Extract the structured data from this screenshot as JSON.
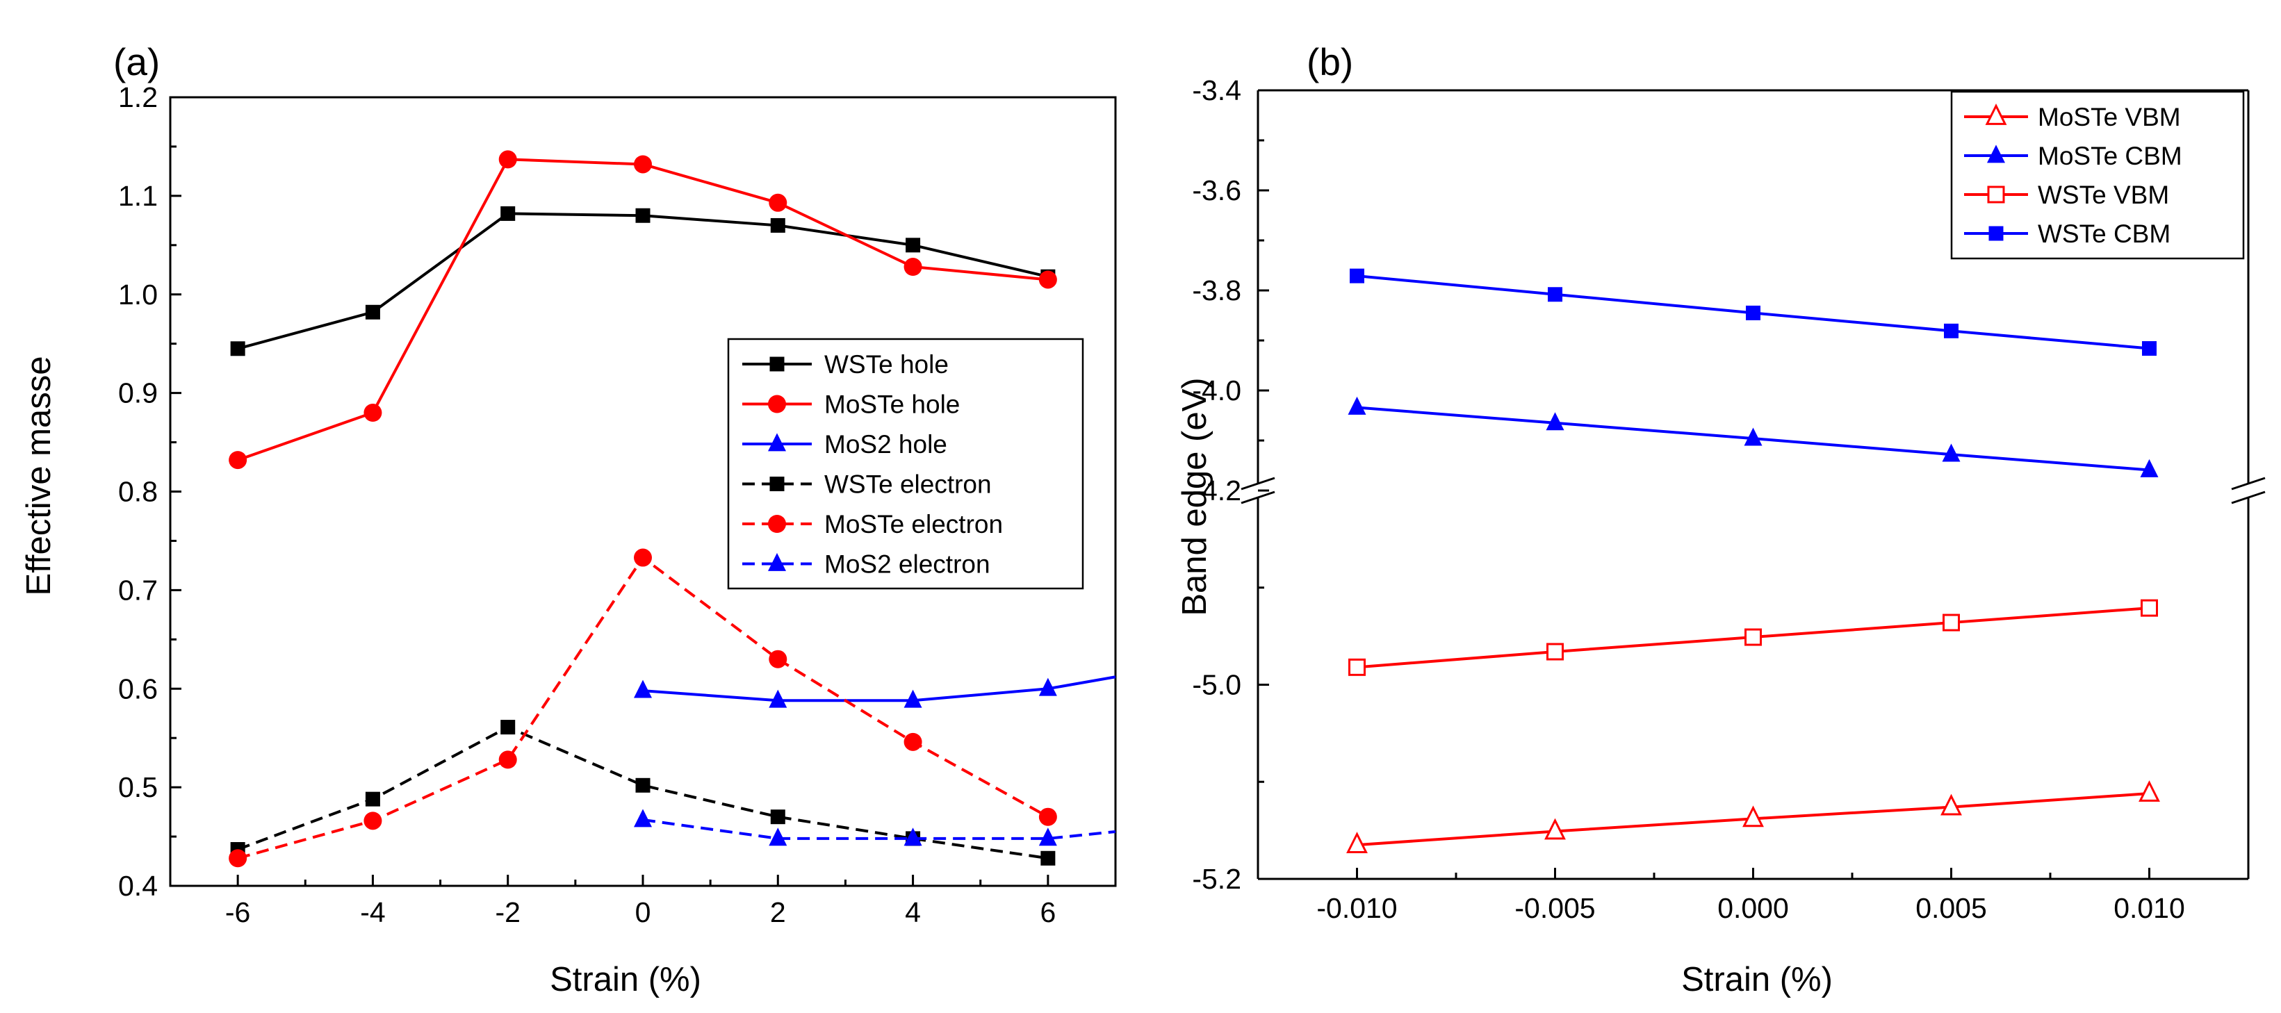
{
  "chart_data": [
    {
      "panel_label": "(a)",
      "type": "line",
      "xlabel": "Strain (%)",
      "ylabel": "Effective masse",
      "xlim": [
        -7,
        7
      ],
      "ylim": [
        0.4,
        1.2
      ],
      "xticks": [
        "-6",
        "-4",
        "-2",
        "0",
        "2",
        "4",
        "6"
      ],
      "yticks": [
        "0.4",
        "0.5",
        "0.6",
        "0.7",
        "0.8",
        "0.9",
        "1.0",
        "1.1",
        "1.2"
      ],
      "legend_position": "right",
      "series": [
        {
          "name": "WSTe hole",
          "color": "#000000",
          "dash": "solid",
          "marker": "square",
          "x": [
            -6,
            -4,
            -2,
            0,
            2,
            4,
            6
          ],
          "values": [
            0.945,
            0.982,
            1.082,
            1.08,
            1.07,
            1.05,
            1.018
          ]
        },
        {
          "name": "MoSTe hole",
          "color": "#ff0000",
          "dash": "solid",
          "marker": "circle",
          "x": [
            -6,
            -4,
            -2,
            0,
            2,
            4,
            6
          ],
          "values": [
            0.832,
            0.88,
            1.137,
            1.132,
            1.093,
            1.028,
            1.015
          ]
        },
        {
          "name": "MoS2 hole",
          "color": "#0000ff",
          "dash": "solid",
          "marker": "triangle",
          "x": [
            0,
            2,
            4,
            6
          ],
          "values": [
            0.598,
            0.588,
            0.588,
            0.6
          ],
          "extend_to": [
            7,
            0.612
          ]
        },
        {
          "name": "WSTe electron",
          "color": "#000000",
          "dash": "dashed",
          "marker": "square",
          "x": [
            -6,
            -4,
            -2,
            0,
            2,
            4,
            6
          ],
          "values": [
            0.437,
            0.488,
            0.561,
            0.502,
            0.47,
            0.448,
            0.428
          ]
        },
        {
          "name": "MoSTe electron",
          "color": "#ff0000",
          "dash": "dashed",
          "marker": "circle",
          "x": [
            -6,
            -4,
            -2,
            0,
            2,
            4,
            6
          ],
          "values": [
            0.428,
            0.466,
            0.528,
            0.733,
            0.63,
            0.546,
            0.47
          ]
        },
        {
          "name": "MoS2 electron",
          "color": "#0000ff",
          "dash": "dashed",
          "marker": "triangle",
          "x": [
            0,
            2,
            4,
            6
          ],
          "values": [
            0.467,
            0.448,
            0.448,
            0.448
          ],
          "extend_to": [
            7,
            0.455
          ]
        }
      ]
    },
    {
      "panel_label": "(b)",
      "type": "line",
      "xlabel": "Strain (%)",
      "ylabel": "Band edge (eV)",
      "xlim": [
        -0.0125,
        0.0125
      ],
      "ylim": [
        -5.2,
        -3.4
      ],
      "y_axis_break": [
        -4.2,
        -4.8
      ],
      "xticks": [
        "-0.010",
        "-0.005",
        "0.000",
        "0.005",
        "0.010"
      ],
      "yticks": [
        "-5.2",
        "-5.0",
        "-4.2",
        "-4.0",
        "-3.8",
        "-3.6",
        "-3.4"
      ],
      "legend_position": "top-right",
      "series": [
        {
          "name": "MoSTe VBM",
          "color": "#ff0000",
          "marker": "triangle-open",
          "x": [
            -0.01,
            -0.005,
            0,
            0.005,
            0.01
          ],
          "values": [
            -5.165,
            -5.151,
            -5.138,
            -5.126,
            -5.112
          ]
        },
        {
          "name": "MoSTe CBM",
          "color": "#0000ff",
          "marker": "triangle-filled",
          "x": [
            -0.01,
            -0.005,
            0,
            0.005,
            0.01
          ],
          "values": [
            -4.034,
            -4.065,
            -4.096,
            -4.128,
            -4.159
          ]
        },
        {
          "name": "WSTe VBM",
          "color": "#ff0000",
          "marker": "square-open",
          "x": [
            -0.01,
            -0.005,
            0,
            0.005,
            0.01
          ],
          "values": [
            -4.982,
            -4.966,
            -4.951,
            -4.936,
            -4.921
          ]
        },
        {
          "name": "WSTe CBM",
          "color": "#0000ff",
          "marker": "square-filled",
          "x": [
            -0.01,
            -0.005,
            0,
            0.005,
            0.01
          ],
          "values": [
            -3.771,
            -3.808,
            -3.845,
            -3.881,
            -3.916
          ]
        }
      ]
    }
  ]
}
